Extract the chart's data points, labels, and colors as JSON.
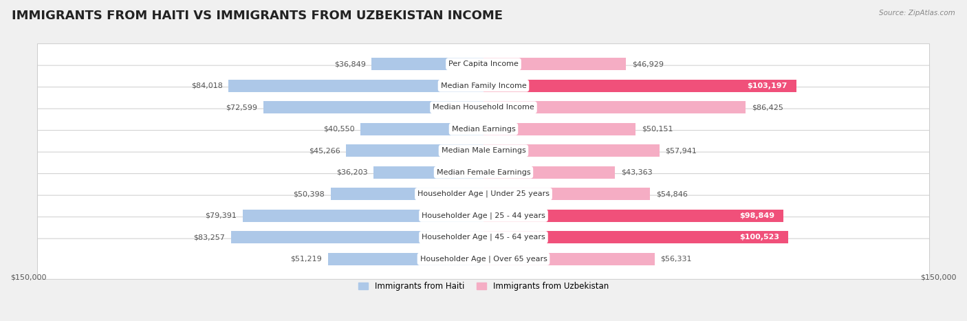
{
  "title": "IMMIGRANTS FROM HAITI VS IMMIGRANTS FROM UZBEKISTAN INCOME",
  "source": "Source: ZipAtlas.com",
  "categories": [
    "Per Capita Income",
    "Median Family Income",
    "Median Household Income",
    "Median Earnings",
    "Median Male Earnings",
    "Median Female Earnings",
    "Householder Age | Under 25 years",
    "Householder Age | 25 - 44 years",
    "Householder Age | 45 - 64 years",
    "Householder Age | Over 65 years"
  ],
  "haiti_values": [
    36849,
    84018,
    72599,
    40550,
    45266,
    36203,
    50398,
    79391,
    83257,
    51219
  ],
  "uzbekistan_values": [
    46929,
    103197,
    86425,
    50151,
    57941,
    43363,
    54846,
    98849,
    100523,
    56331
  ],
  "haiti_labels": [
    "$36,849",
    "$84,018",
    "$72,599",
    "$40,550",
    "$45,266",
    "$36,203",
    "$50,398",
    "$79,391",
    "$83,257",
    "$51,219"
  ],
  "uzbekistan_labels": [
    "$46,929",
    "$103,197",
    "$86,425",
    "$50,151",
    "$57,941",
    "$43,363",
    "$54,846",
    "$98,849",
    "$100,523",
    "$56,331"
  ],
  "max_value": 150000,
  "haiti_color_light": "#adc8e8",
  "haiti_color_dark": "#5b96d2",
  "uzbekistan_color_light": "#f5adc4",
  "uzbekistan_color_dark": "#f0507a",
  "label_white": "#ffffff",
  "label_dark": "#555555",
  "inside_label_threshold": 90000,
  "background_color": "#f0f0f0",
  "row_bg_color": "#ffffff",
  "border_color": "#cccccc",
  "title_fontsize": 13,
  "label_fontsize": 8,
  "category_fontsize": 8,
  "axis_fontsize": 8,
  "legend_label_haiti": "Immigrants from Haiti",
  "legend_label_uzbek": "Immigrants from Uzbekistan"
}
